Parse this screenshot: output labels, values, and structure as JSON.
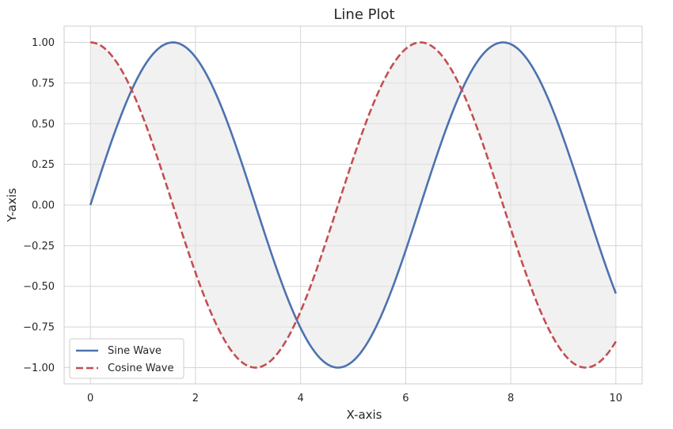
{
  "chart_data": {
    "type": "line",
    "title": "Line Plot",
    "xlabel": "X-axis",
    "ylabel": "Y-axis",
    "xlim": [
      -0.5,
      10.5
    ],
    "ylim": [
      -1.1,
      1.1
    ],
    "x_ticks": [
      0,
      2,
      4,
      6,
      8,
      10
    ],
    "x_tick_labels": [
      "0",
      "2",
      "4",
      "6",
      "8",
      "10"
    ],
    "y_ticks": [
      1.0,
      0.75,
      0.5,
      0.25,
      0.0,
      -0.25,
      -0.5,
      -0.75,
      -1.0
    ],
    "y_tick_labels": [
      "1.00",
      "0.75",
      "0.50",
      "0.25",
      "0.00",
      "−0.25",
      "−0.50",
      "−0.75",
      "−1.00"
    ],
    "grid": true,
    "legend_position": "lower-left",
    "fill_between": {
      "from": "Sine Wave",
      "to": "Cosine Wave",
      "color": "#e6e6e6"
    },
    "x_range": [
      0,
      10
    ],
    "sample_count": 200,
    "series": [
      {
        "name": "Sine Wave",
        "function": "sin",
        "color": "#4c72b0",
        "linestyle": "solid"
      },
      {
        "name": "Cosine Wave",
        "function": "cos",
        "color": "#c44e52",
        "linestyle": "dashed"
      }
    ]
  }
}
